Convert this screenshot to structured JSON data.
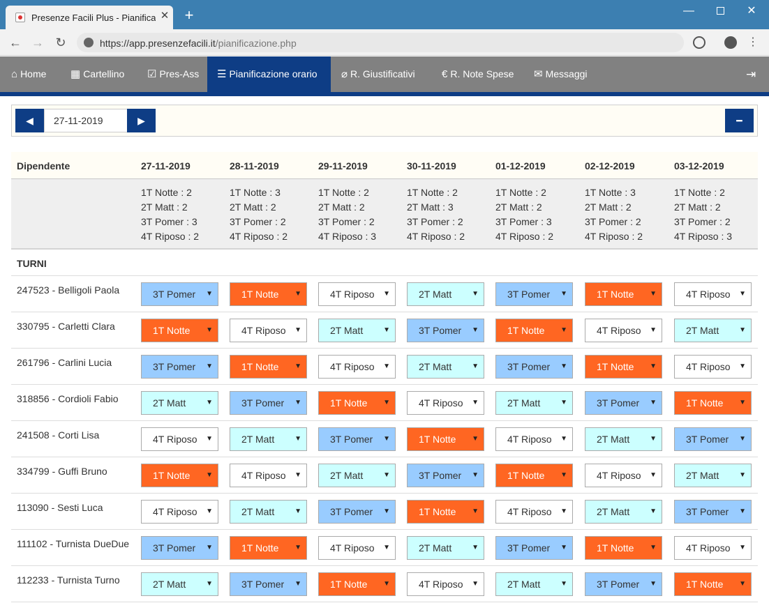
{
  "browser": {
    "tab_title": "Presenze Facili Plus - Pianificazione orario",
    "tab_close": "✕",
    "new_tab": "+",
    "url_host": "https://app.presenzefacili.it",
    "url_path": "/pianificazione.php"
  },
  "nav": {
    "items": [
      {
        "label": "Home",
        "icon": "home-icon"
      },
      {
        "label": "Cartellino",
        "icon": "calendar-icon"
      },
      {
        "label": "Pres-Ass",
        "icon": "checkbox-icon"
      },
      {
        "label": "Pianificazione orario",
        "icon": "list-icon",
        "active": true
      },
      {
        "label": "R. Giustificativi",
        "icon": "paperclip-icon"
      },
      {
        "label": "R. Note Spese",
        "icon": "euro-icon"
      },
      {
        "label": "Messaggi",
        "icon": "envelope-icon"
      }
    ],
    "logout_icon": "logout-icon"
  },
  "toolbar": {
    "date": "27-11-2019"
  },
  "table": {
    "header_label": "Dipendente",
    "dates": [
      "27-11-2019",
      "28-11-2019",
      "29-11-2019",
      "30-11-2019",
      "01-12-2019",
      "02-12-2019",
      "03-12-2019"
    ],
    "summary": [
      [
        "1T Notte : 2",
        "2T Matt : 2",
        "3T Pomer : 3",
        "4T Riposo : 2"
      ],
      [
        "1T Notte : 3",
        "2T Matt : 2",
        "3T Pomer : 2",
        "4T Riposo : 2"
      ],
      [
        "1T Notte : 2",
        "2T Matt : 2",
        "3T Pomer : 2",
        "4T Riposo : 3"
      ],
      [
        "1T Notte : 2",
        "2T Matt : 3",
        "3T Pomer : 2",
        "4T Riposo : 2"
      ],
      [
        "1T Notte : 2",
        "2T Matt : 2",
        "3T Pomer : 3",
        "4T Riposo : 2"
      ],
      [
        "1T Notte : 3",
        "2T Matt : 2",
        "3T Pomer : 2",
        "4T Riposo : 2"
      ],
      [
        "1T Notte : 2",
        "2T Matt : 2",
        "3T Pomer : 2",
        "4T Riposo : 3"
      ]
    ],
    "section_label": "TURNI",
    "shift_colors": {
      "1T Notte": "#ff6622",
      "2T Matt": "#ccffff",
      "3T Pomer": "#99ccff",
      "4T Riposo": "#ffffff"
    },
    "employees": [
      {
        "name": "247523 - Belligoli Paola",
        "shifts": [
          "3T Pomer",
          "1T Notte",
          "4T Riposo",
          "2T Matt",
          "3T Pomer",
          "1T Notte",
          "4T Riposo"
        ]
      },
      {
        "name": "330795 - Carletti Clara",
        "shifts": [
          "1T Notte",
          "4T Riposo",
          "2T Matt",
          "3T Pomer",
          "1T Notte",
          "4T Riposo",
          "2T Matt"
        ]
      },
      {
        "name": "261796 - Carlini Lucia",
        "shifts": [
          "3T Pomer",
          "1T Notte",
          "4T Riposo",
          "2T Matt",
          "3T Pomer",
          "1T Notte",
          "4T Riposo"
        ]
      },
      {
        "name": "318856 - Cordioli Fabio",
        "shifts": [
          "2T Matt",
          "3T Pomer",
          "1T Notte",
          "4T Riposo",
          "2T Matt",
          "3T Pomer",
          "1T Notte"
        ]
      },
      {
        "name": "241508 - Corti Lisa",
        "shifts": [
          "4T Riposo",
          "2T Matt",
          "3T Pomer",
          "1T Notte",
          "4T Riposo",
          "2T Matt",
          "3T Pomer"
        ]
      },
      {
        "name": "334799 - Guffi Bruno",
        "shifts": [
          "1T Notte",
          "4T Riposo",
          "2T Matt",
          "3T Pomer",
          "1T Notte",
          "4T Riposo",
          "2T Matt"
        ]
      },
      {
        "name": "113090 - Sesti Luca",
        "shifts": [
          "4T Riposo",
          "2T Matt",
          "3T Pomer",
          "1T Notte",
          "4T Riposo",
          "2T Matt",
          "3T Pomer"
        ]
      },
      {
        "name": "111102 - Turnista DueDue",
        "shifts": [
          "3T Pomer",
          "1T Notte",
          "4T Riposo",
          "2T Matt",
          "3T Pomer",
          "1T Notte",
          "4T Riposo"
        ]
      },
      {
        "name": "112233 - Turnista Turno",
        "shifts": [
          "2T Matt",
          "3T Pomer",
          "1T Notte",
          "4T Riposo",
          "2T Matt",
          "3T Pomer",
          "1T Notte"
        ]
      }
    ]
  }
}
